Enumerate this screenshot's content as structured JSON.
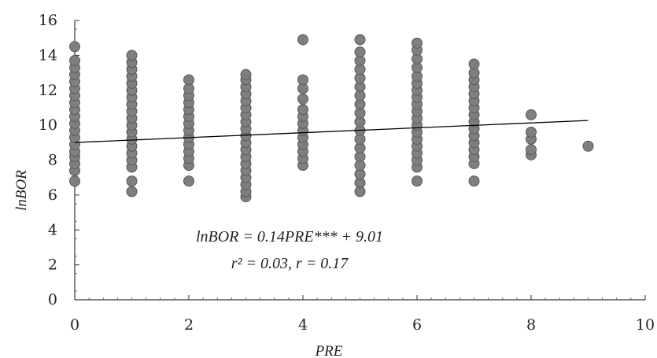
{
  "chart_data": {
    "type": "scatter",
    "title": "",
    "xlabel": "PRE",
    "ylabel": "lnBOR",
    "xlim": [
      0,
      10
    ],
    "ylim": [
      0,
      16
    ],
    "x_ticks": [
      "0",
      "2",
      "4",
      "6",
      "8",
      "10"
    ],
    "y_ticks": [
      "0",
      "2",
      "4",
      "6",
      "8",
      "10",
      "12",
      "14",
      "16"
    ],
    "grid": false,
    "legend": "none",
    "marker_color": "#7f7f7f",
    "marker_edge_color": "#5a5a5a",
    "line_color": "#000000",
    "series": [
      {
        "values": [
          {
            "x": 0,
            "y": 6.8
          },
          {
            "x": 0,
            "y": 7.4
          },
          {
            "x": 0,
            "y": 7.8
          },
          {
            "x": 0,
            "y": 8.2
          },
          {
            "x": 0,
            "y": 8.5
          },
          {
            "x": 0,
            "y": 8.9
          },
          {
            "x": 0,
            "y": 9.3
          },
          {
            "x": 0,
            "y": 9.7
          },
          {
            "x": 0,
            "y": 10.1
          },
          {
            "x": 0,
            "y": 10.5
          },
          {
            "x": 0,
            "y": 10.9
          },
          {
            "x": 0,
            "y": 11.3
          },
          {
            "x": 0,
            "y": 11.7
          },
          {
            "x": 0,
            "y": 12.1
          },
          {
            "x": 0,
            "y": 12.5
          },
          {
            "x": 0,
            "y": 12.9
          },
          {
            "x": 0,
            "y": 13.3
          },
          {
            "x": 0,
            "y": 13.7
          },
          {
            "x": 0,
            "y": 14.5
          },
          {
            "x": 1,
            "y": 6.2
          },
          {
            "x": 1,
            "y": 6.8
          },
          {
            "x": 1,
            "y": 7.6
          },
          {
            "x": 1,
            "y": 8.0
          },
          {
            "x": 1,
            "y": 8.4
          },
          {
            "x": 1,
            "y": 8.8
          },
          {
            "x": 1,
            "y": 9.2
          },
          {
            "x": 1,
            "y": 9.6
          },
          {
            "x": 1,
            "y": 10.0
          },
          {
            "x": 1,
            "y": 10.4
          },
          {
            "x": 1,
            "y": 10.8
          },
          {
            "x": 1,
            "y": 11.2
          },
          {
            "x": 1,
            "y": 11.6
          },
          {
            "x": 1,
            "y": 12.0
          },
          {
            "x": 1,
            "y": 12.4
          },
          {
            "x": 1,
            "y": 12.8
          },
          {
            "x": 1,
            "y": 13.2
          },
          {
            "x": 1,
            "y": 13.6
          },
          {
            "x": 1,
            "y": 14.0
          },
          {
            "x": 2,
            "y": 6.8
          },
          {
            "x": 2,
            "y": 7.7
          },
          {
            "x": 2,
            "y": 8.1
          },
          {
            "x": 2,
            "y": 8.5
          },
          {
            "x": 2,
            "y": 8.9
          },
          {
            "x": 2,
            "y": 9.3
          },
          {
            "x": 2,
            "y": 9.7
          },
          {
            "x": 2,
            "y": 10.1
          },
          {
            "x": 2,
            "y": 10.5
          },
          {
            "x": 2,
            "y": 10.9
          },
          {
            "x": 2,
            "y": 11.3
          },
          {
            "x": 2,
            "y": 11.7
          },
          {
            "x": 2,
            "y": 12.1
          },
          {
            "x": 2,
            "y": 12.6
          },
          {
            "x": 3,
            "y": 5.9
          },
          {
            "x": 3,
            "y": 6.2
          },
          {
            "x": 3,
            "y": 6.6
          },
          {
            "x": 3,
            "y": 7.0
          },
          {
            "x": 3,
            "y": 7.4
          },
          {
            "x": 3,
            "y": 7.8
          },
          {
            "x": 3,
            "y": 8.2
          },
          {
            "x": 3,
            "y": 8.6
          },
          {
            "x": 3,
            "y": 9.0
          },
          {
            "x": 3,
            "y": 9.4
          },
          {
            "x": 3,
            "y": 9.8
          },
          {
            "x": 3,
            "y": 10.2
          },
          {
            "x": 3,
            "y": 10.6
          },
          {
            "x": 3,
            "y": 11.0
          },
          {
            "x": 3,
            "y": 11.4
          },
          {
            "x": 3,
            "y": 11.8
          },
          {
            "x": 3,
            "y": 12.2
          },
          {
            "x": 3,
            "y": 12.6
          },
          {
            "x": 3,
            "y": 12.9
          },
          {
            "x": 4,
            "y": 7.7
          },
          {
            "x": 4,
            "y": 8.1
          },
          {
            "x": 4,
            "y": 8.5
          },
          {
            "x": 4,
            "y": 8.9
          },
          {
            "x": 4,
            "y": 9.3
          },
          {
            "x": 4,
            "y": 9.7
          },
          {
            "x": 4,
            "y": 10.1
          },
          {
            "x": 4,
            "y": 10.5
          },
          {
            "x": 4,
            "y": 10.9
          },
          {
            "x": 4,
            "y": 11.5
          },
          {
            "x": 4,
            "y": 12.1
          },
          {
            "x": 4,
            "y": 12.6
          },
          {
            "x": 4,
            "y": 14.9
          },
          {
            "x": 5,
            "y": 6.2
          },
          {
            "x": 5,
            "y": 6.7
          },
          {
            "x": 5,
            "y": 7.2
          },
          {
            "x": 5,
            "y": 7.7
          },
          {
            "x": 5,
            "y": 8.2
          },
          {
            "x": 5,
            "y": 8.7
          },
          {
            "x": 5,
            "y": 9.2
          },
          {
            "x": 5,
            "y": 9.7
          },
          {
            "x": 5,
            "y": 10.2
          },
          {
            "x": 5,
            "y": 10.7
          },
          {
            "x": 5,
            "y": 11.2
          },
          {
            "x": 5,
            "y": 11.7
          },
          {
            "x": 5,
            "y": 12.2
          },
          {
            "x": 5,
            "y": 12.7
          },
          {
            "x": 5,
            "y": 13.2
          },
          {
            "x": 5,
            "y": 13.7
          },
          {
            "x": 5,
            "y": 14.2
          },
          {
            "x": 5,
            "y": 14.9
          },
          {
            "x": 6,
            "y": 6.8
          },
          {
            "x": 6,
            "y": 7.6
          },
          {
            "x": 6,
            "y": 8.0
          },
          {
            "x": 6,
            "y": 8.4
          },
          {
            "x": 6,
            "y": 8.8
          },
          {
            "x": 6,
            "y": 9.2
          },
          {
            "x": 6,
            "y": 9.6
          },
          {
            "x": 6,
            "y": 10.0
          },
          {
            "x": 6,
            "y": 10.4
          },
          {
            "x": 6,
            "y": 10.8
          },
          {
            "x": 6,
            "y": 11.2
          },
          {
            "x": 6,
            "y": 11.6
          },
          {
            "x": 6,
            "y": 12.0
          },
          {
            "x": 6,
            "y": 12.4
          },
          {
            "x": 6,
            "y": 12.8
          },
          {
            "x": 6,
            "y": 13.3
          },
          {
            "x": 6,
            "y": 13.8
          },
          {
            "x": 6,
            "y": 14.3
          },
          {
            "x": 6,
            "y": 14.7
          },
          {
            "x": 7,
            "y": 6.8
          },
          {
            "x": 7,
            "y": 7.8
          },
          {
            "x": 7,
            "y": 8.2
          },
          {
            "x": 7,
            "y": 8.6
          },
          {
            "x": 7,
            "y": 9.0
          },
          {
            "x": 7,
            "y": 9.4
          },
          {
            "x": 7,
            "y": 9.8
          },
          {
            "x": 7,
            "y": 10.2
          },
          {
            "x": 7,
            "y": 10.6
          },
          {
            "x": 7,
            "y": 11.0
          },
          {
            "x": 7,
            "y": 11.4
          },
          {
            "x": 7,
            "y": 11.8
          },
          {
            "x": 7,
            "y": 12.2
          },
          {
            "x": 7,
            "y": 12.6
          },
          {
            "x": 7,
            "y": 13.0
          },
          {
            "x": 7,
            "y": 13.5
          },
          {
            "x": 8,
            "y": 8.3
          },
          {
            "x": 8,
            "y": 8.6
          },
          {
            "x": 8,
            "y": 9.2
          },
          {
            "x": 8,
            "y": 9.6
          },
          {
            "x": 8,
            "y": 10.6
          },
          {
            "x": 9,
            "y": 8.8
          }
        ]
      }
    ],
    "trendline": {
      "slope": 0.14,
      "intercept": 9.01,
      "x_range": [
        0,
        9
      ]
    },
    "annotations": {
      "equation": "lnBOR = 0.14PRE*** + 9.01",
      "stats": "r² = 0.03, r = 0.17"
    }
  }
}
